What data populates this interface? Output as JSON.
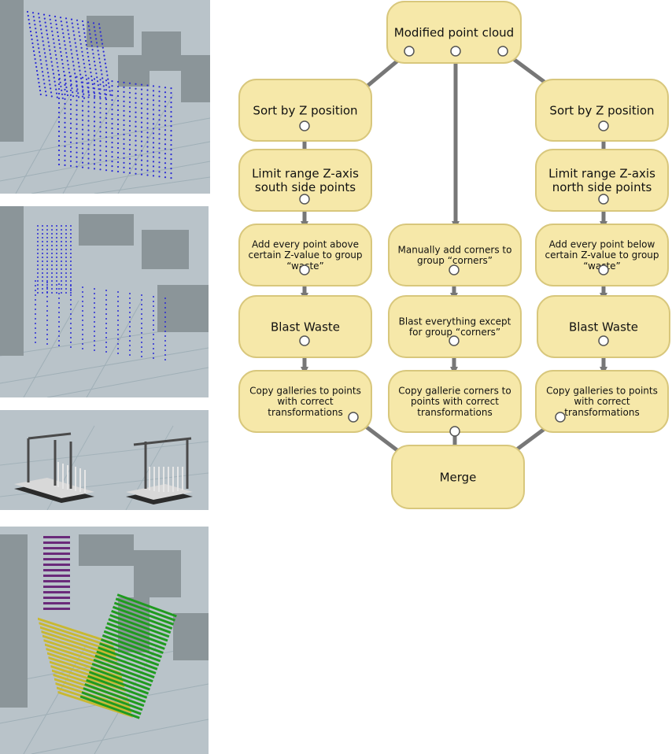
{
  "colors": {
    "node_fill": "#f6e8a9",
    "node_border": "#d8c77c",
    "arrow": "#777777",
    "viewport_bg": "#b9c3c9",
    "points": "#2b2bd6",
    "purple": "#6a2a7a",
    "yellow": "#c9b830",
    "green": "#1f9a1f"
  },
  "nodes": {
    "root": [
      "Modified point cloud"
    ],
    "left_sort": [
      "Sort by Z position"
    ],
    "left_limit": [
      "Limit range Z-axis",
      "south side points"
    ],
    "left_add": [
      "Add every point above",
      "certain Z-value to group",
      "“waste”"
    ],
    "left_blast": [
      "Blast Waste"
    ],
    "left_copy": [
      "Copy galleries to points",
      "with correct",
      "transformations"
    ],
    "mid_manual": [
      "Manually add corners to",
      "group “corners”"
    ],
    "mid_blast": [
      "Blast everything except",
      "for group “corners”"
    ],
    "mid_copy": [
      "Copy gallerie corners to",
      "points with correct",
      "transformations"
    ],
    "right_sort": [
      "Sort by Z position"
    ],
    "right_limit": [
      "Limit range Z-axis",
      "north side points"
    ],
    "right_add": [
      "Add every point below",
      "certain Z-value to group",
      "“waste”"
    ],
    "right_blast": [
      "Blast Waste"
    ],
    "right_copy": [
      "Copy galleries to points",
      "with correct",
      "transformations"
    ],
    "merge": [
      "Merge"
    ]
  }
}
